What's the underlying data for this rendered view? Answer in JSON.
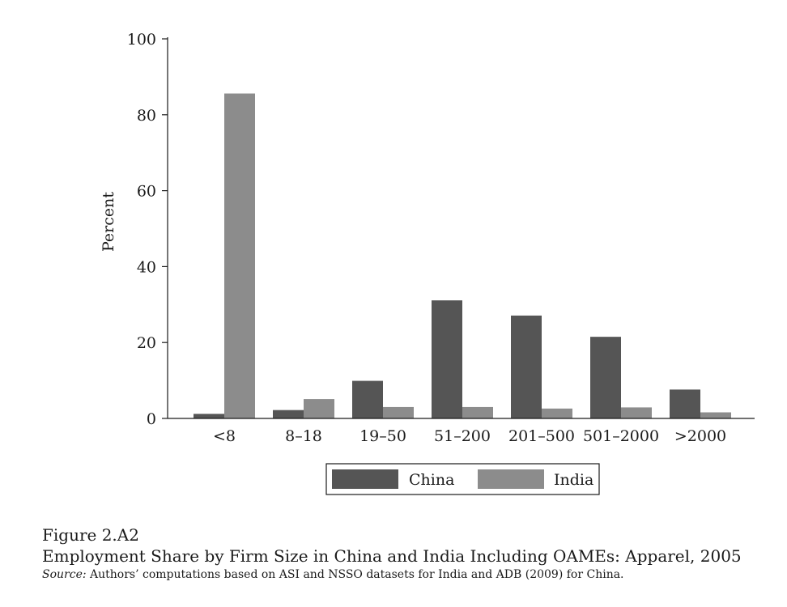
{
  "chart_data": {
    "type": "bar",
    "categories": [
      "<8",
      "8–18",
      "19–50",
      "51–200",
      "201–500",
      "501–2000",
      ">2000"
    ],
    "series": [
      {
        "name": "China",
        "values": [
          1.2,
          2.2,
          9.9,
          31.1,
          27.1,
          21.5,
          7.6
        ],
        "color": "#555555"
      },
      {
        "name": "India",
        "values": [
          85.6,
          5.1,
          3.0,
          3.0,
          2.6,
          2.9,
          1.6
        ],
        "color": "#8c8c8c"
      }
    ],
    "ylabel": "Percent",
    "xlabel": "",
    "ylim": [
      0,
      100
    ],
    "yticks": [
      0,
      20,
      40,
      60,
      80,
      100
    ],
    "grid": false,
    "legend": "bottom-center"
  },
  "caption": {
    "figure_label": "Figure 2.A2",
    "title": "Employment Share by Firm Size in China and India Including OAMEs: Apparel, 2005",
    "source_prefix": "Source:",
    "source_text": " Authors’ computations based on ASI and NSSO datasets for India and ADB (2009) for China."
  }
}
